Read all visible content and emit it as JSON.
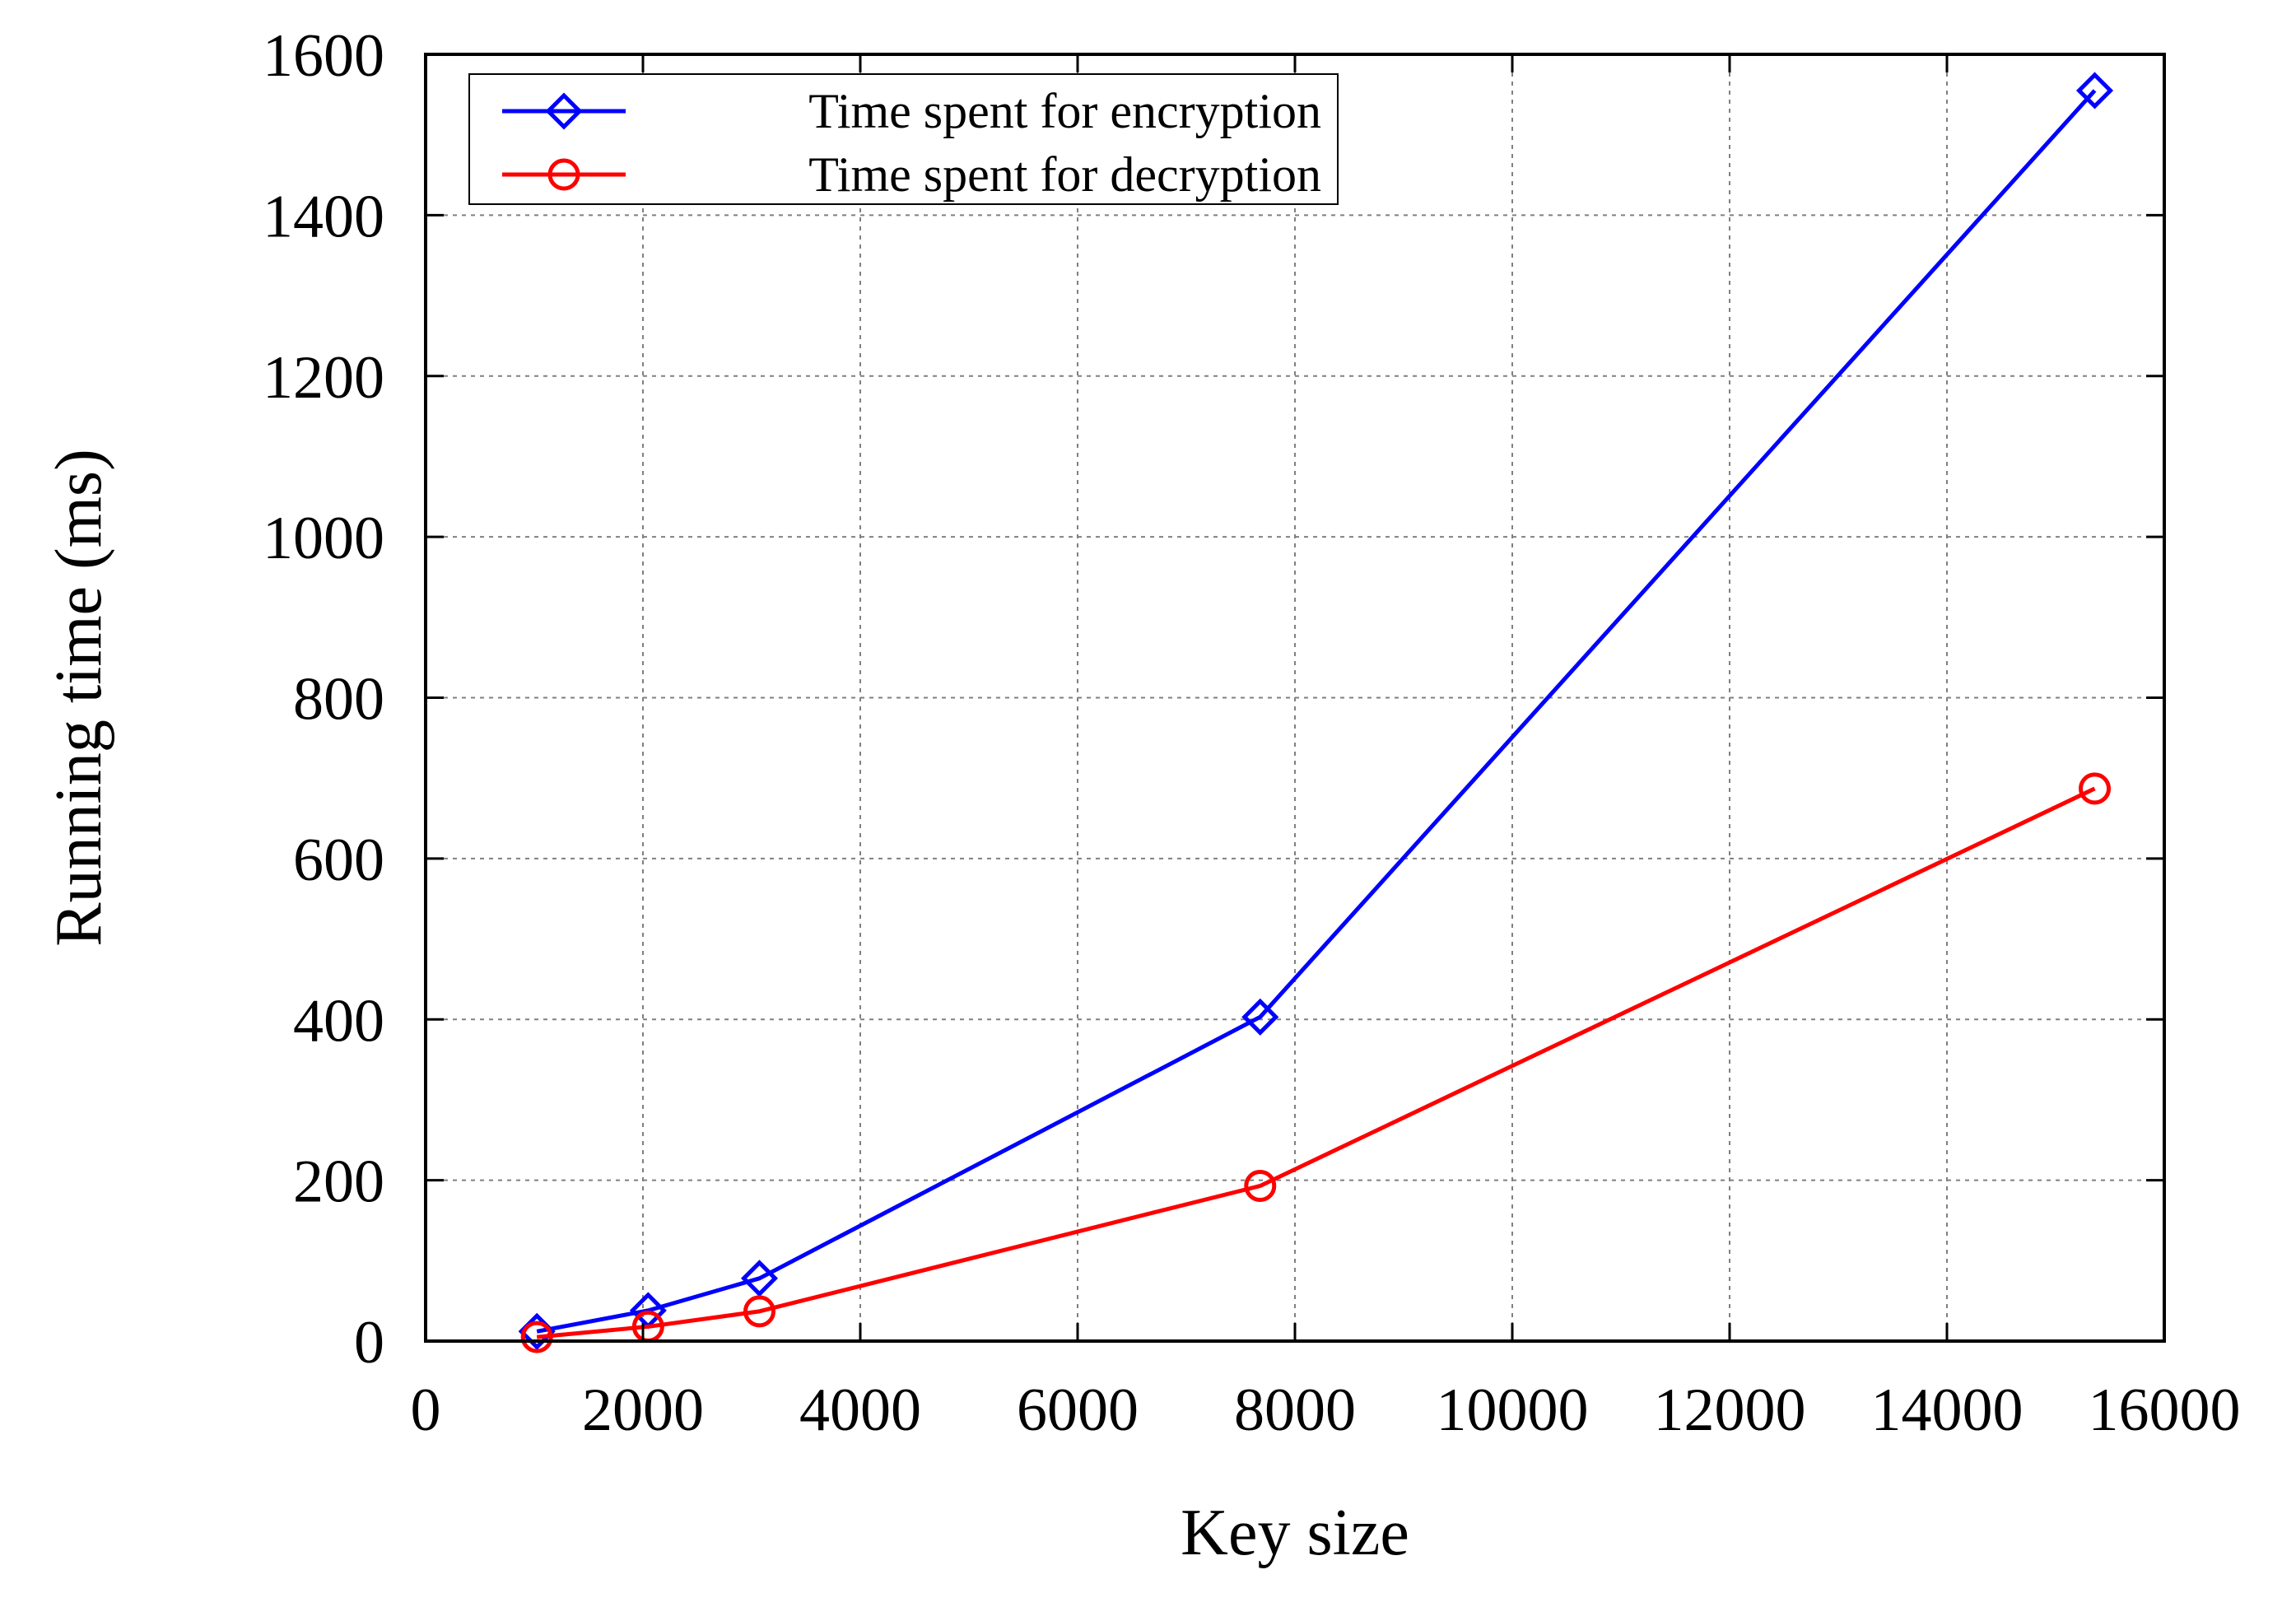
{
  "chart_data": {
    "type": "line",
    "title": "",
    "xlabel": "Key size",
    "ylabel": "Running time (ms)",
    "xlim": [
      0,
      16000
    ],
    "ylim": [
      0,
      1600
    ],
    "xticks": [
      0,
      2000,
      4000,
      6000,
      8000,
      10000,
      12000,
      14000,
      16000
    ],
    "yticks": [
      0,
      200,
      400,
      600,
      800,
      1000,
      1200,
      1400,
      1600
    ],
    "grid": true,
    "legend_position": "top-left",
    "series": [
      {
        "name": "Time spent for encryption",
        "color": "#0000ff",
        "marker": "diamond",
        "x": [
          1024,
          2048,
          3072,
          7680,
          15360
        ],
        "y": [
          12,
          38,
          78,
          403,
          1555
        ]
      },
      {
        "name": "Time spent for decryption",
        "color": "#ff0000",
        "marker": "circle",
        "x": [
          1024,
          2048,
          3072,
          7680,
          15360
        ],
        "y": [
          5,
          18,
          37,
          193,
          687
        ]
      }
    ]
  }
}
